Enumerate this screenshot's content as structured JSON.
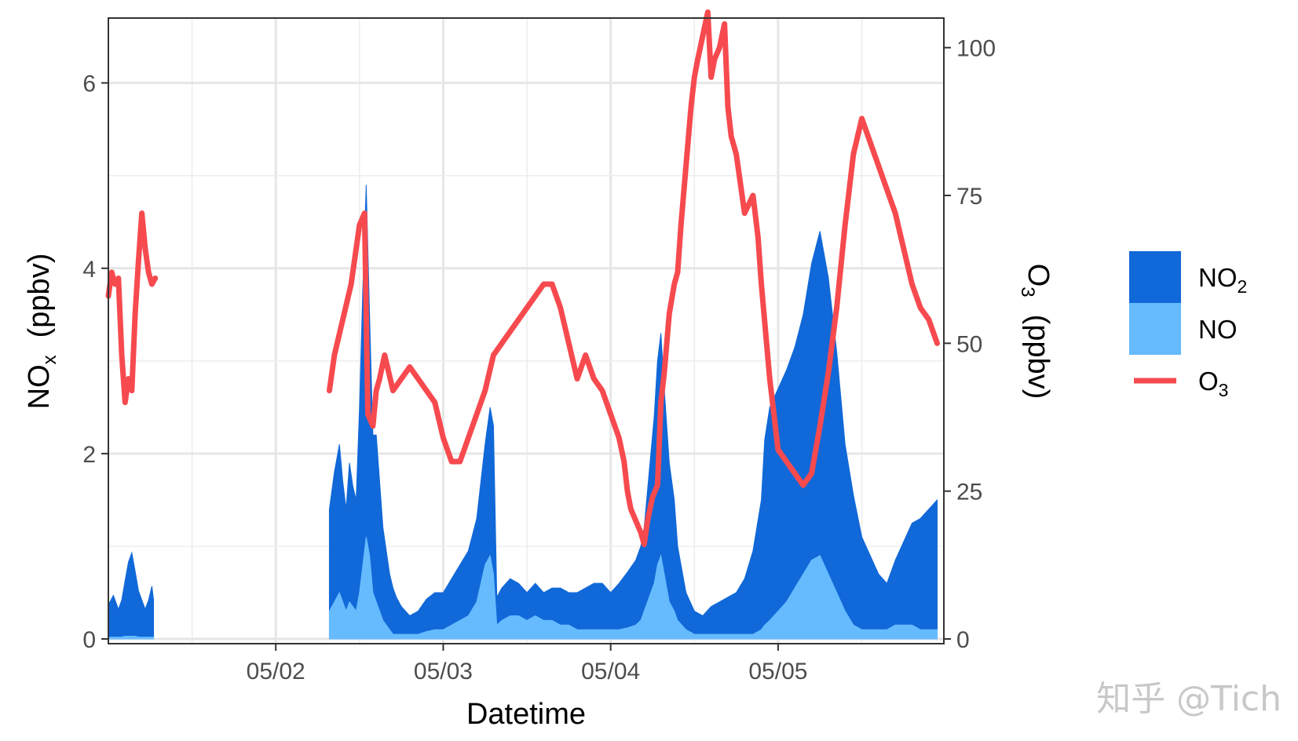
{
  "chart_data": {
    "type": "area",
    "xlabel": "Datetime",
    "ylabel_left": {
      "main": "NO",
      "sub": "x",
      "units": "(ppbv)"
    },
    "ylabel_right": {
      "main": "O",
      "sub": "3",
      "units": "(ppbv)"
    },
    "x_range_days": [
      "05/01 01:00",
      "05/05 23:59"
    ],
    "x_ticks": [
      "05/02",
      "05/03",
      "05/04",
      "05/05"
    ],
    "x_tick_dates": [
      "2024-05-02",
      "2024-05-03",
      "2024-05-04",
      "2024-05-05"
    ],
    "ylim_left": [
      0,
      6.7
    ],
    "yticks_left": [
      0,
      2,
      4,
      6
    ],
    "ylim_right": [
      0,
      105
    ],
    "yticks_right": [
      0,
      25,
      50,
      75,
      100
    ],
    "grid": true,
    "legend_position": "right",
    "legend": [
      {
        "label": "NO",
        "sub": "2",
        "kind": "fill",
        "color": "#1168d8"
      },
      {
        "label": "NO",
        "sub": "",
        "kind": "fill",
        "color": "#66bbff"
      },
      {
        "label": "O",
        "sub": "3",
        "kind": "line",
        "color": "#f64a4f"
      }
    ],
    "series": [
      {
        "name": "NO2",
        "axis": "left",
        "kind": "stacked-area",
        "color": "#1168d8",
        "segments": [
          {
            "x": [
              1.0,
              1.03,
              1.06,
              1.08,
              1.1,
              1.12,
              1.14,
              1.16,
              1.18,
              1.2,
              1.22,
              1.24,
              1.26,
              1.27
            ],
            "y": [
              0.35,
              0.45,
              0.3,
              0.4,
              0.6,
              0.8,
              0.9,
              0.7,
              0.5,
              0.4,
              0.3,
              0.4,
              0.55,
              0.4
            ]
          },
          {
            "x": [
              2.32,
              2.35,
              2.38,
              2.4,
              2.42,
              2.44,
              2.46,
              2.48,
              2.5,
              2.52,
              2.54,
              2.56,
              2.58,
              2.6,
              2.62,
              2.64,
              2.66,
              2.68,
              2.7,
              2.72,
              2.75,
              2.8,
              2.85,
              2.9,
              2.95,
              3.0,
              3.05,
              3.1,
              3.15,
              3.2,
              3.25,
              3.28,
              3.3,
              3.32,
              3.35,
              3.4,
              3.45,
              3.5,
              3.55,
              3.6,
              3.65,
              3.7,
              3.75,
              3.8,
              3.85,
              3.9,
              3.95,
              4.0,
              4.05,
              4.1,
              4.15,
              4.18,
              4.2,
              4.22,
              4.24,
              4.26,
              4.28,
              4.3,
              4.32,
              4.35,
              4.38,
              4.4,
              4.45,
              4.5,
              4.55,
              4.6,
              4.65,
              4.7,
              4.75,
              4.8,
              4.85,
              4.9,
              4.92,
              4.95,
              5.0,
              5.05,
              5.1,
              5.15,
              5.2,
              5.25,
              5.3,
              5.35,
              5.4,
              5.45,
              5.5,
              5.55,
              5.6,
              5.65,
              5.7,
              5.75,
              5.8,
              5.85,
              5.9,
              5.95
            ],
            "y": [
              1.1,
              1.4,
              1.6,
              1.3,
              1.1,
              1.5,
              1.3,
              1.2,
              2.0,
              3.0,
              3.8,
              2.6,
              1.7,
              1.8,
              1.4,
              1.0,
              0.8,
              0.6,
              0.5,
              0.4,
              0.3,
              0.2,
              0.25,
              0.35,
              0.4,
              0.4,
              0.5,
              0.6,
              0.7,
              0.9,
              1.3,
              1.6,
              1.6,
              0.3,
              0.35,
              0.4,
              0.35,
              0.3,
              0.35,
              0.3,
              0.35,
              0.4,
              0.35,
              0.4,
              0.45,
              0.5,
              0.5,
              0.4,
              0.5,
              0.6,
              0.7,
              0.8,
              0.9,
              1.2,
              1.5,
              1.8,
              2.2,
              2.4,
              2.0,
              1.5,
              1.2,
              0.8,
              0.4,
              0.25,
              0.2,
              0.3,
              0.35,
              0.4,
              0.45,
              0.6,
              0.9,
              1.4,
              2.0,
              2.3,
              2.4,
              2.5,
              2.6,
              2.8,
              3.2,
              3.5,
              3.2,
              2.6,
              1.8,
              1.4,
              1.0,
              0.8,
              0.6,
              0.5,
              0.7,
              0.9,
              1.1,
              1.2,
              1.3,
              1.4
            ]
          }
        ]
      },
      {
        "name": "NO",
        "axis": "left",
        "kind": "stacked-area",
        "color": "#66bbff",
        "segments": [
          {
            "x": [
              1.0,
              1.03,
              1.06,
              1.08,
              1.1,
              1.12,
              1.14,
              1.16,
              1.18,
              1.2,
              1.22,
              1.24,
              1.26,
              1.27
            ],
            "y": [
              0.02,
              0.02,
              0.02,
              0.02,
              0.03,
              0.03,
              0.03,
              0.03,
              0.02,
              0.02,
              0.02,
              0.02,
              0.02,
              0.02
            ]
          },
          {
            "x": [
              2.32,
              2.35,
              2.38,
              2.4,
              2.42,
              2.44,
              2.46,
              2.48,
              2.5,
              2.52,
              2.54,
              2.56,
              2.58,
              2.6,
              2.62,
              2.64,
              2.66,
              2.68,
              2.7,
              2.72,
              2.75,
              2.8,
              2.85,
              2.9,
              2.95,
              3.0,
              3.05,
              3.1,
              3.15,
              3.2,
              3.25,
              3.28,
              3.3,
              3.32,
              3.35,
              3.4,
              3.45,
              3.5,
              3.55,
              3.6,
              3.65,
              3.7,
              3.75,
              3.8,
              3.85,
              3.9,
              3.95,
              4.0,
              4.05,
              4.1,
              4.15,
              4.18,
              4.2,
              4.22,
              4.24,
              4.26,
              4.28,
              4.3,
              4.32,
              4.35,
              4.38,
              4.4,
              4.45,
              4.5,
              4.55,
              4.6,
              4.65,
              4.7,
              4.75,
              4.8,
              4.85,
              4.9,
              4.92,
              4.95,
              5.0,
              5.05,
              5.1,
              5.15,
              5.2,
              5.25,
              5.3,
              5.35,
              5.4,
              5.45,
              5.5,
              5.55,
              5.6,
              5.65,
              5.7,
              5.75,
              5.8,
              5.85,
              5.9,
              5.95
            ],
            "y": [
              0.3,
              0.4,
              0.5,
              0.4,
              0.3,
              0.4,
              0.35,
              0.3,
              0.5,
              0.8,
              1.1,
              0.9,
              0.5,
              0.4,
              0.3,
              0.2,
              0.15,
              0.1,
              0.05,
              0.05,
              0.05,
              0.05,
              0.05,
              0.08,
              0.1,
              0.1,
              0.15,
              0.2,
              0.25,
              0.4,
              0.8,
              0.9,
              0.7,
              0.15,
              0.2,
              0.25,
              0.25,
              0.2,
              0.25,
              0.2,
              0.2,
              0.15,
              0.15,
              0.1,
              0.1,
              0.1,
              0.1,
              0.1,
              0.1,
              0.12,
              0.15,
              0.2,
              0.3,
              0.4,
              0.5,
              0.6,
              0.8,
              0.9,
              0.7,
              0.4,
              0.3,
              0.2,
              0.1,
              0.05,
              0.05,
              0.05,
              0.05,
              0.05,
              0.05,
              0.05,
              0.05,
              0.1,
              0.15,
              0.2,
              0.3,
              0.4,
              0.55,
              0.7,
              0.85,
              0.9,
              0.7,
              0.5,
              0.3,
              0.15,
              0.1,
              0.1,
              0.1,
              0.1,
              0.15,
              0.15,
              0.15,
              0.1,
              0.1,
              0.1
            ]
          }
        ]
      },
      {
        "name": "O3",
        "axis": "right",
        "kind": "line",
        "color": "#f64a4f",
        "segments": [
          {
            "x": [
              1.0,
              1.02,
              1.04,
              1.06,
              1.08,
              1.1,
              1.12,
              1.14,
              1.16,
              1.18,
              1.2,
              1.22,
              1.24,
              1.26,
              1.28
            ],
            "y": [
              58,
              62,
              60,
              61,
              48,
              40,
              44,
              42,
              55,
              64,
              72,
              66,
              62,
              60,
              61
            ]
          },
          {
            "x": [
              2.32,
              2.35,
              2.4,
              2.45,
              2.5,
              2.53,
              2.55,
              2.58,
              2.6,
              2.62,
              2.65,
              2.7,
              2.75,
              2.8,
              2.85,
              2.9,
              2.95,
              3.0,
              3.05,
              3.1,
              3.15,
              3.2,
              3.25,
              3.3,
              3.35,
              3.4,
              3.45,
              3.5,
              3.55,
              3.6,
              3.65,
              3.7,
              3.75,
              3.8,
              3.85,
              3.9,
              3.95,
              4.0,
              4.05,
              4.08,
              4.1,
              4.12,
              4.15,
              4.18,
              4.2,
              4.22,
              4.25,
              4.28,
              4.3,
              4.32,
              4.35,
              4.38,
              4.4,
              4.42,
              4.45,
              4.48,
              4.5,
              4.52,
              4.55,
              4.58,
              4.6,
              4.62,
              4.65,
              4.68,
              4.7,
              4.72,
              4.75,
              4.8,
              4.85,
              4.88,
              4.9,
              4.95,
              5.0,
              5.05,
              5.1,
              5.15,
              5.2,
              5.25,
              5.3,
              5.35,
              5.4,
              5.45,
              5.5,
              5.55,
              5.6,
              5.65,
              5.7,
              5.75,
              5.8,
              5.85,
              5.9,
              5.95
            ],
            "y": [
              42,
              48,
              54,
              60,
              70,
              72,
              38,
              36,
              42,
              44,
              48,
              42,
              44,
              46,
              44,
              42,
              40,
              34,
              30,
              30,
              34,
              38,
              42,
              48,
              50,
              52,
              54,
              56,
              58,
              60,
              60,
              56,
              50,
              44,
              48,
              44,
              42,
              38,
              34,
              30,
              25,
              22,
              20,
              18,
              16,
              20,
              24,
              26,
              40,
              45,
              55,
              60,
              62,
              70,
              80,
              90,
              95,
              98,
              102,
              106,
              95,
              98,
              100,
              104,
              90,
              85,
              82,
              72,
              75,
              68,
              60,
              44,
              32,
              30,
              28,
              26,
              28,
              36,
              45,
              56,
              70,
              82,
              88,
              84,
              80,
              76,
              72,
              66,
              60,
              56,
              54,
              50
            ]
          }
        ]
      }
    ]
  },
  "watermark": "知乎 @Tich"
}
